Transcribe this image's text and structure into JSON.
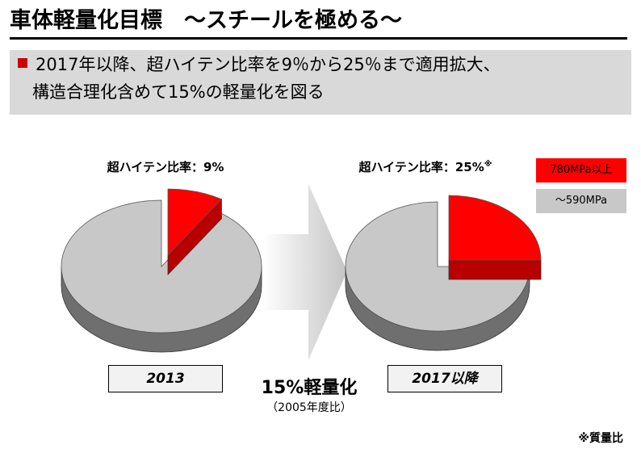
{
  "header": {
    "title": "車体軽量化目標　～スチールを極める～",
    "line1": "2017年以降、超ハイテン比率を9％から25％まで適用拡大、",
    "line2": "構造合理化含めて15%の軽量化を図る"
  },
  "legend": {
    "red_label": "780MPa以上",
    "gray_label": "～590MPa"
  },
  "arrow": {
    "label": "15%軽量化",
    "note": "（2005年度比）"
  },
  "footnote": "※質量比",
  "colors": {
    "high_tensile": "#ff0000",
    "high_tensile_dark": "#b80000",
    "other": "#c8c8c8",
    "other_dark": "#6f6f6f",
    "bullet": "#cc0000"
  },
  "chart_data": [
    {
      "type": "pie",
      "title": "超ハイテン比率：9%",
      "category_label": "2013",
      "slices": [
        {
          "name": "780MPa以上",
          "value": 9
        },
        {
          "name": "～590MPa",
          "value": 91
        }
      ]
    },
    {
      "type": "pie",
      "title": "超ハイテン比率：25%",
      "title_mark": "※",
      "category_label": "2017以降",
      "slices": [
        {
          "name": "780MPa以上",
          "value": 25
        },
        {
          "name": "～590MPa",
          "value": 75
        }
      ]
    }
  ]
}
